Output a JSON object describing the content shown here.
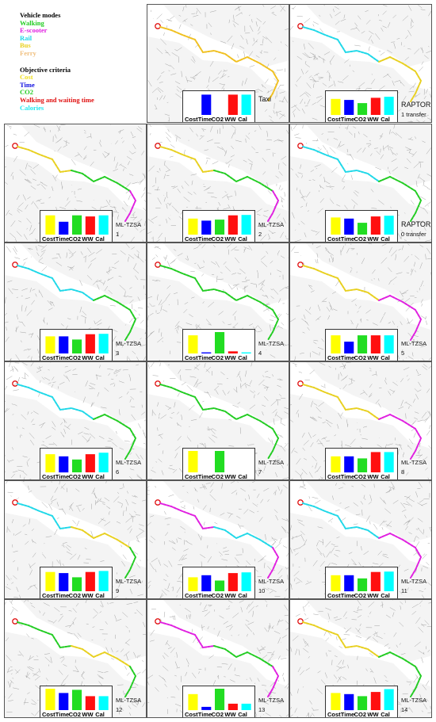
{
  "legend": {
    "modes_heading": "Vehicle modes",
    "modes": [
      {
        "label": "Walking",
        "color": "#22cc22"
      },
      {
        "label": "E-scooter",
        "color": "#e020e0"
      },
      {
        "label": "Rail",
        "color": "#20d8e8"
      },
      {
        "label": "Bus",
        "color": "#e8d020"
      },
      {
        "label": "Ferry",
        "color": "#f0c080"
      }
    ],
    "criteria_heading": "Objective criteria",
    "criteria": [
      {
        "label": "Cost",
        "color": "#f0e020"
      },
      {
        "label": "Time",
        "color": "#1010e0"
      },
      {
        "label": "CO2",
        "color": "#22cc22"
      },
      {
        "label": "Walking and waiting time",
        "color": "#e01010"
      },
      {
        "label": "Calories",
        "color": "#20e8f0"
      }
    ]
  },
  "chart_data": {
    "type": "bar",
    "categories": [
      "Cost",
      "Time",
      "CO2",
      "WW",
      "Cal"
    ],
    "bar_colors": [
      "#ffff00",
      "#0000ff",
      "#22dd22",
      "#ff1010",
      "#00ffff"
    ],
    "ylim": [
      0,
      1
    ],
    "panels": [
      {
        "label": "Taxi",
        "sublabel": "",
        "values": [
          0,
          0.95,
          0,
          0.95,
          0.95
        ],
        "route": [
          "#f0c020"
        ]
      },
      {
        "label": "RAPTOR",
        "sublabel": "1 transfer",
        "values": [
          0.75,
          0.7,
          0.55,
          0.8,
          0.85
        ],
        "route": [
          "#20d8e8",
          "#e8d020"
        ]
      },
      {
        "label": "ML-TZSA",
        "sublabel": "1",
        "values": [
          0.9,
          0.6,
          0.9,
          0.85,
          0.9
        ],
        "route": [
          "#e8d020",
          "#22cc22",
          "#e020e0"
        ]
      },
      {
        "label": "ML-TZSA",
        "sublabel": "2",
        "values": [
          0.75,
          0.65,
          0.7,
          0.9,
          0.92
        ],
        "route": [
          "#e8d020",
          "#22cc22",
          "#e020e0"
        ]
      },
      {
        "label": "RAPTOR",
        "sublabel": "0 transfer",
        "values": [
          0.8,
          0.75,
          0.55,
          0.85,
          0.88
        ],
        "route": [
          "#20d8e8",
          "#22cc22"
        ]
      },
      {
        "label": "ML-TZSA",
        "sublabel": "3",
        "values": [
          0.8,
          0.8,
          0.65,
          0.9,
          0.92
        ],
        "route": [
          "#20d8e8",
          "#22cc22"
        ]
      },
      {
        "label": "ML-TZSA",
        "sublabel": "4",
        "values": [
          0.85,
          0.05,
          1.0,
          0.1,
          0.05
        ],
        "route": [
          "#22cc22"
        ]
      },
      {
        "label": "ML-TZSA",
        "sublabel": "5",
        "values": [
          0.85,
          0.55,
          0.85,
          0.85,
          0.85
        ],
        "route": [
          "#e8d020",
          "#e020e0"
        ]
      },
      {
        "label": "ML-TZSA",
        "sublabel": "6",
        "values": [
          0.85,
          0.75,
          0.6,
          0.85,
          0.92
        ],
        "route": [
          "#20d8e8",
          "#22cc22"
        ]
      },
      {
        "label": "ML-TZSA",
        "sublabel": "7",
        "values": [
          1.0,
          0,
          1.0,
          0,
          0
        ],
        "route": [
          "#22cc22"
        ]
      },
      {
        "label": "ML-TZSA",
        "sublabel": "8",
        "values": [
          0.75,
          0.75,
          0.65,
          0.95,
          0.95
        ],
        "route": [
          "#e8d020",
          "#e020e0"
        ]
      },
      {
        "label": "ML-TZSA",
        "sublabel": "9",
        "values": [
          0.9,
          0.85,
          0.65,
          0.9,
          0.95
        ],
        "route": [
          "#20d8e8",
          "#e8d020",
          "#22cc22"
        ]
      },
      {
        "label": "ML-TZSA",
        "sublabel": "10",
        "values": [
          0.65,
          0.75,
          0.5,
          0.85,
          0.88
        ],
        "route": [
          "#e020e0",
          "#20d8e8",
          "#e020e0"
        ]
      },
      {
        "label": "ML-TZSA",
        "sublabel": "11",
        "values": [
          0.75,
          0.75,
          0.6,
          0.9,
          0.92
        ],
        "route": [
          "#20d8e8",
          "#e020e0"
        ]
      },
      {
        "label": "ML-TZSA",
        "sublabel": "12",
        "values": [
          1.0,
          0.8,
          0.95,
          0.65,
          0.65
        ],
        "route": [
          "#22cc22",
          "#e8d020",
          "#22cc22"
        ]
      },
      {
        "label": "ML-TZSA",
        "sublabel": "13",
        "values": [
          0.75,
          0.15,
          1.0,
          0.3,
          0.3
        ],
        "route": [
          "#e020e0",
          "#22cc22",
          "#e020e0"
        ]
      },
      {
        "label": "ML-TZSA",
        "sublabel": "14",
        "values": [
          0.8,
          0.75,
          0.65,
          0.85,
          0.98
        ],
        "route": [
          "#e8d020",
          "#22cc22"
        ]
      }
    ]
  }
}
